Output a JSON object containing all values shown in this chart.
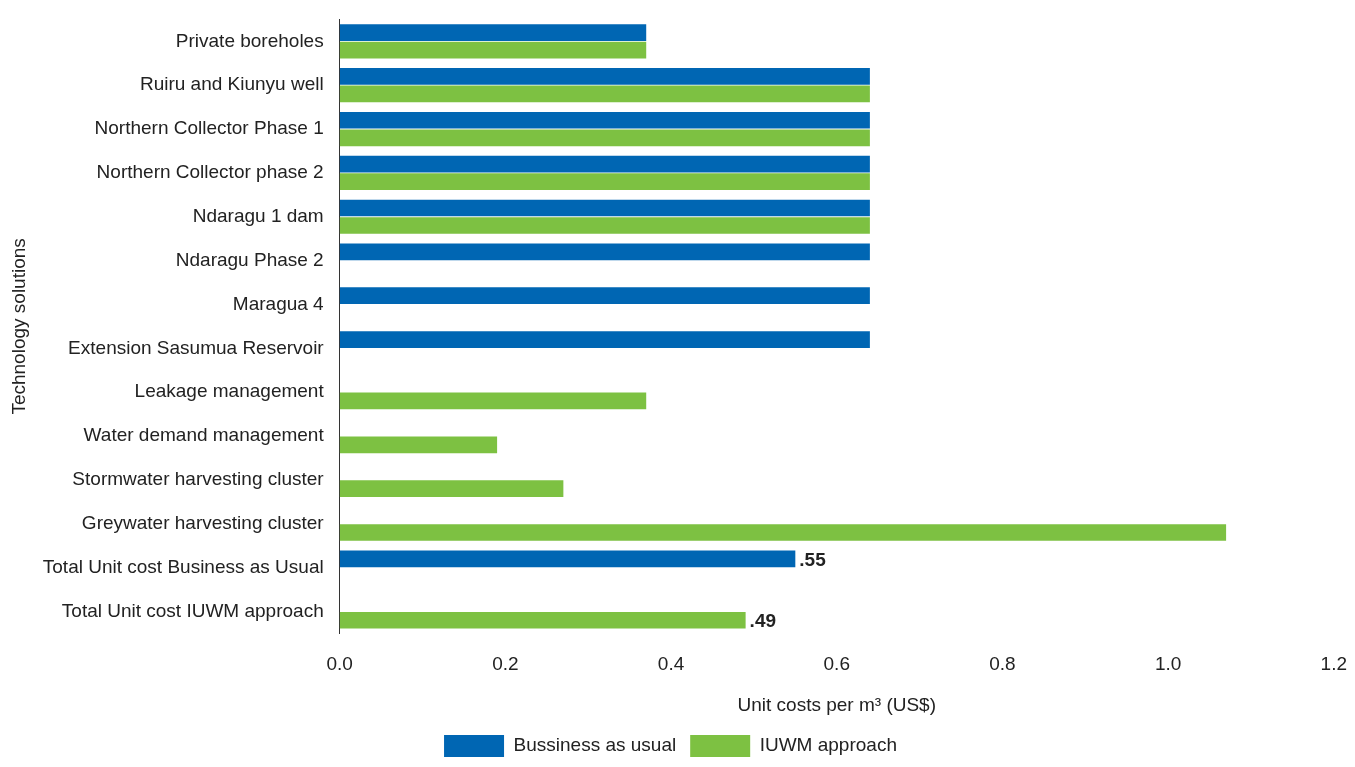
{
  "chart_data": {
    "type": "bar",
    "orientation": "horizontal",
    "xlabel": "Unit costs per m³ (US$)",
    "ylabel": "Technology solutions",
    "categories": [
      "Private boreholes",
      "Ruiru and Kiunyu well",
      "Northern Collector Phase 1",
      "Northern Collector phase 2",
      "Ndaragu 1 dam",
      "Ndaragu Phase 2",
      "Maragua 4",
      "Extension Sasumua Reservoir",
      "Leakage management",
      "Water demand management",
      "Stormwater harvesting cluster",
      "Greywater harvesting cluster",
      "Total Unit cost Business as Usual",
      "Total Unit cost IUWM approach"
    ],
    "series": [
      {
        "name": "Bussiness as usual",
        "color": "#0066b3",
        "values": [
          0.37,
          0.64,
          0.64,
          0.64,
          0.64,
          0.64,
          0.64,
          0.64,
          null,
          null,
          null,
          null,
          0.55,
          null
        ],
        "value_labels": [
          null,
          null,
          null,
          null,
          null,
          null,
          null,
          null,
          null,
          null,
          null,
          null,
          ".55",
          null
        ]
      },
      {
        "name": "IUWM approach",
        "color": "#7dc142",
        "values": [
          0.37,
          0.64,
          0.64,
          0.64,
          0.64,
          null,
          null,
          null,
          0.37,
          0.19,
          0.27,
          1.07,
          null,
          0.49
        ],
        "value_labels": [
          null,
          null,
          null,
          null,
          null,
          null,
          null,
          null,
          null,
          null,
          null,
          null,
          null,
          ".49"
        ]
      }
    ],
    "xlim": [
      0,
      1.2
    ],
    "xticks": [
      {
        "value": 0,
        "label": "0.0"
      },
      {
        "value": 0.2,
        "label": "0.2"
      },
      {
        "value": 0.4,
        "label": "0.4"
      },
      {
        "value": 0.6,
        "label": "0.6"
      },
      {
        "value": 0.8,
        "label": "0.8"
      },
      {
        "value": 1.0,
        "label": "1.0"
      },
      {
        "value": 1.2,
        "label": "1.2"
      }
    ],
    "grid": false,
    "legend": "bottom"
  }
}
